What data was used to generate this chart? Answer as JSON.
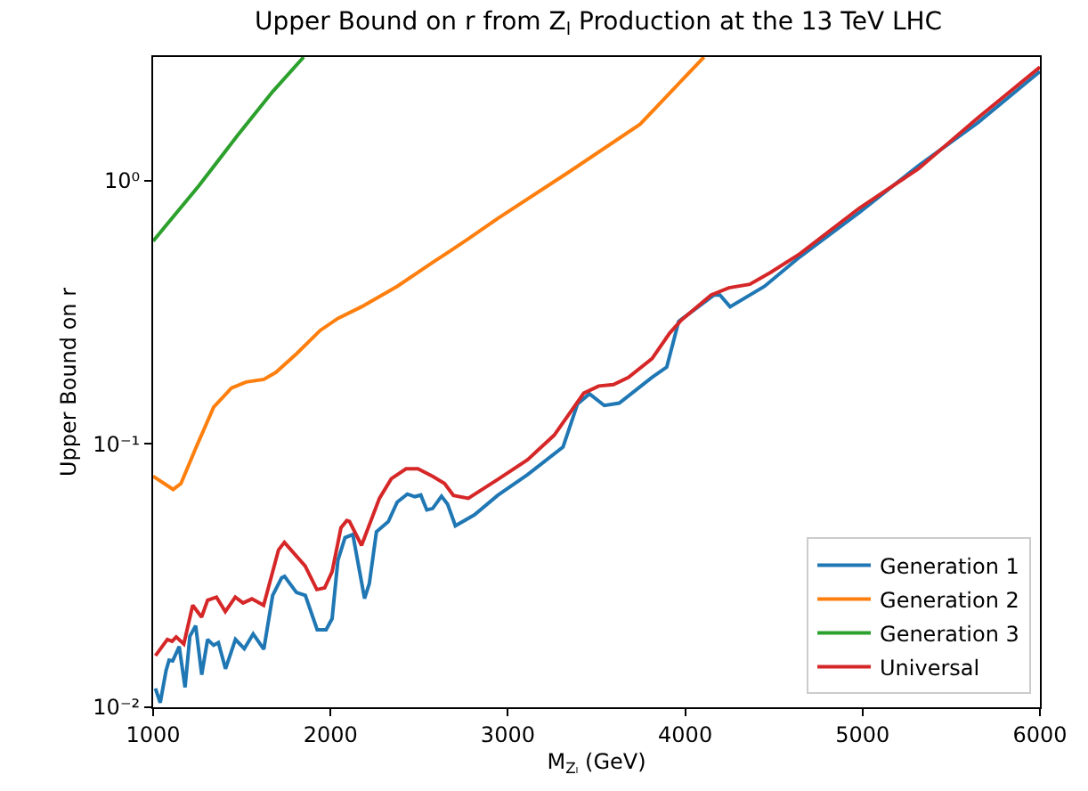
{
  "chart_data": {
    "type": "line",
    "title": "Upper Bound on r from Z$_{l}$ Production at the 13 TeV LHC",
    "xlabel": "M$_{Zₗ}$ (GeV)",
    "ylabel": "Upper Bound on r",
    "log": "y",
    "grid": false,
    "legend": "bottom right",
    "line_style": "solid",
    "marker": "none",
    "xlim": [
      1000,
      6000
    ],
    "xticks": [
      1000,
      2000,
      3000,
      4000,
      5000,
      6000
    ],
    "ylim": [
      0.01,
      2.95
    ],
    "yticks": [
      {
        "value": 0.01,
        "label": "10⁻²"
      },
      {
        "value": 0.1,
        "label": "10⁻¹"
      },
      {
        "value": 1,
        "label": "10⁰"
      }
    ],
    "series": [
      {
        "name": "Generation 1",
        "color": "#1f77b4",
        "x": [
          1013,
          1040,
          1073,
          1090,
          1110,
          1147,
          1180,
          1207,
          1240,
          1274,
          1307,
          1341,
          1368,
          1408,
          1464,
          1514,
          1564,
          1624,
          1674,
          1724,
          1741,
          1808,
          1858,
          1925,
          1975,
          2009,
          2042,
          2082,
          2126,
          2192,
          2219,
          2259,
          2326,
          2376,
          2433,
          2476,
          2509,
          2543,
          2576,
          2626,
          2660,
          2704,
          2811,
          2944,
          3111,
          3311,
          3393,
          3460,
          3544,
          3628,
          3813,
          3896,
          3963,
          4163,
          4196,
          4253,
          4447,
          4647,
          4981,
          5315,
          5649,
          6000
        ],
        "values": [
          0.0118,
          0.0104,
          0.0138,
          0.0151,
          0.015,
          0.017,
          0.0119,
          0.0186,
          0.0204,
          0.0133,
          0.0181,
          0.0172,
          0.0176,
          0.014,
          0.0181,
          0.0167,
          0.019,
          0.0166,
          0.0266,
          0.031,
          0.0314,
          0.0273,
          0.0266,
          0.0197,
          0.0197,
          0.0217,
          0.0362,
          0.0441,
          0.0453,
          0.0259,
          0.0295,
          0.0464,
          0.0507,
          0.0601,
          0.0645,
          0.0631,
          0.064,
          0.0562,
          0.0569,
          0.0633,
          0.0591,
          0.0489,
          0.0538,
          0.0639,
          0.0765,
          0.0974,
          0.142,
          0.155,
          0.14,
          0.143,
          0.179,
          0.196,
          0.292,
          0.368,
          0.368,
          0.332,
          0.397,
          0.514,
          0.757,
          1.14,
          1.66,
          2.6
        ]
      },
      {
        "name": "Generation 2",
        "color": "#ff7f0e",
        "x": [
          1000,
          1113,
          1157,
          1240,
          1341,
          1441,
          1524,
          1624,
          1692,
          1808,
          1942,
          2042,
          2175,
          2376,
          2576,
          2777,
          2944,
          3345,
          3746,
          4106
        ],
        "values": [
          0.0754,
          0.0672,
          0.0708,
          0.0963,
          0.138,
          0.163,
          0.172,
          0.176,
          0.187,
          0.22,
          0.27,
          0.3,
          0.332,
          0.397,
          0.489,
          0.601,
          0.72,
          1.08,
          1.64,
          2.95
        ]
      },
      {
        "name": "Generation 3",
        "color": "#2ca02c",
        "x": [
          1000,
          1257,
          1474,
          1674,
          1849
        ],
        "values": [
          0.59,
          0.955,
          1.48,
          2.18,
          2.95
        ]
      },
      {
        "name": "Universal",
        "color": "#d62728",
        "x": [
          1013,
          1080,
          1107,
          1130,
          1173,
          1223,
          1273,
          1307,
          1357,
          1407,
          1463,
          1507,
          1557,
          1623,
          1707,
          1740,
          1857,
          1923,
          1967,
          2009,
          2059,
          2092,
          2107,
          2175,
          2276,
          2343,
          2426,
          2493,
          2576,
          2643,
          2693,
          2777,
          2944,
          3111,
          3261,
          3428,
          3512,
          3595,
          3679,
          3813,
          3913,
          3979,
          4146,
          4246,
          4364,
          4480,
          4647,
          4981,
          5315,
          5649,
          6000
        ],
        "values": [
          0.0157,
          0.0181,
          0.0178,
          0.0185,
          0.0174,
          0.0244,
          0.022,
          0.0255,
          0.0262,
          0.0231,
          0.0262,
          0.0249,
          0.0258,
          0.0244,
          0.0396,
          0.0423,
          0.0344,
          0.028,
          0.0284,
          0.0327,
          0.0481,
          0.0512,
          0.0508,
          0.0412,
          0.0622,
          0.0738,
          0.0805,
          0.0805,
          0.0754,
          0.0708,
          0.0638,
          0.0622,
          0.0734,
          0.0871,
          0.108,
          0.156,
          0.166,
          0.168,
          0.179,
          0.211,
          0.264,
          0.296,
          0.368,
          0.392,
          0.404,
          0.448,
          0.528,
          0.786,
          1.11,
          1.73,
          2.7
        ]
      }
    ]
  }
}
